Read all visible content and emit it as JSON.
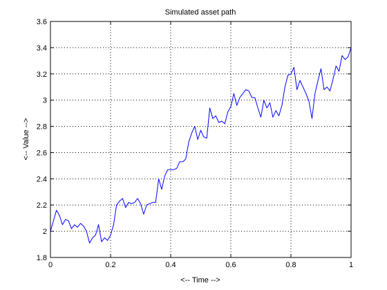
{
  "chart_data": {
    "type": "line",
    "title": "Simulated asset path",
    "xlabel": "<-- Time -->",
    "ylabel": "<-- Value -->",
    "xlim": [
      0,
      1
    ],
    "ylim": [
      1.8,
      3.6
    ],
    "xticks": [
      {
        "value": 0,
        "label": "0"
      },
      {
        "value": 0.2,
        "label": "0.2"
      },
      {
        "value": 0.4,
        "label": "0.4"
      },
      {
        "value": 0.6,
        "label": "0.6"
      },
      {
        "value": 0.8,
        "label": "0.8"
      },
      {
        "value": 1,
        "label": "1"
      }
    ],
    "yticks": [
      {
        "value": 1.8,
        "label": "1.8"
      },
      {
        "value": 2,
        "label": "2"
      },
      {
        "value": 2.2,
        "label": "2.2"
      },
      {
        "value": 2.4,
        "label": "2.4"
      },
      {
        "value": 2.6,
        "label": "2.6"
      },
      {
        "value": 2.8,
        "label": "2.8"
      },
      {
        "value": 3,
        "label": "3"
      },
      {
        "value": 3.2,
        "label": "3.2"
      },
      {
        "value": 3.4,
        "label": "3.4"
      },
      {
        "value": 3.6,
        "label": "3.6"
      }
    ],
    "grid": true,
    "series": [
      {
        "color": "#0000ff",
        "x": [
          0,
          0.01,
          0.02,
          0.03,
          0.04,
          0.05,
          0.06,
          0.07,
          0.08,
          0.09,
          0.1,
          0.11,
          0.12,
          0.13,
          0.14,
          0.15,
          0.16,
          0.17,
          0.18,
          0.19,
          0.2,
          0.21,
          0.22,
          0.23,
          0.24,
          0.25,
          0.26,
          0.27,
          0.28,
          0.29,
          0.3,
          0.31,
          0.32,
          0.33,
          0.34,
          0.35,
          0.36,
          0.37,
          0.38,
          0.39,
          0.4,
          0.41,
          0.42,
          0.43,
          0.44,
          0.45,
          0.46,
          0.47,
          0.48,
          0.49,
          0.5,
          0.51,
          0.52,
          0.53,
          0.54,
          0.55,
          0.56,
          0.57,
          0.58,
          0.59,
          0.6,
          0.61,
          0.62,
          0.63,
          0.64,
          0.65,
          0.66,
          0.67,
          0.68,
          0.69,
          0.7,
          0.71,
          0.72,
          0.73,
          0.74,
          0.75,
          0.76,
          0.77,
          0.78,
          0.79,
          0.8,
          0.81,
          0.82,
          0.83,
          0.84,
          0.85,
          0.86,
          0.87,
          0.88,
          0.89,
          0.9,
          0.91,
          0.92,
          0.93,
          0.94,
          0.95,
          0.96,
          0.97,
          0.98,
          0.99,
          1.0
        ],
        "y": [
          2.0,
          2.08,
          2.16,
          2.12,
          2.05,
          2.09,
          2.08,
          2.02,
          2.05,
          2.03,
          2.06,
          2.04,
          2.0,
          1.91,
          1.95,
          1.97,
          2.05,
          1.92,
          1.95,
          1.93,
          1.97,
          2.05,
          2.2,
          2.23,
          2.25,
          2.18,
          2.22,
          2.21,
          2.22,
          2.25,
          2.21,
          2.13,
          2.2,
          2.21,
          2.22,
          2.22,
          2.4,
          2.32,
          2.42,
          2.47,
          2.47,
          2.47,
          2.48,
          2.53,
          2.53,
          2.55,
          2.68,
          2.75,
          2.8,
          2.7,
          2.77,
          2.72,
          2.71,
          2.94,
          2.86,
          2.88,
          2.83,
          2.84,
          2.82,
          2.91,
          2.95,
          3.05,
          2.96,
          3.02,
          3.05,
          3.08,
          3.07,
          3.02,
          3.02,
          2.94,
          2.87,
          3.0,
          2.94,
          2.98,
          2.87,
          2.92,
          2.88,
          2.96,
          3.1,
          3.19,
          3.2,
          3.25,
          3.08,
          3.15,
          3.1,
          3.05,
          2.99,
          2.86,
          3.05,
          3.15,
          3.24,
          3.08,
          3.1,
          3.07,
          3.16,
          3.26,
          3.22,
          3.34,
          3.31,
          3.33,
          3.4
        ]
      }
    ]
  }
}
